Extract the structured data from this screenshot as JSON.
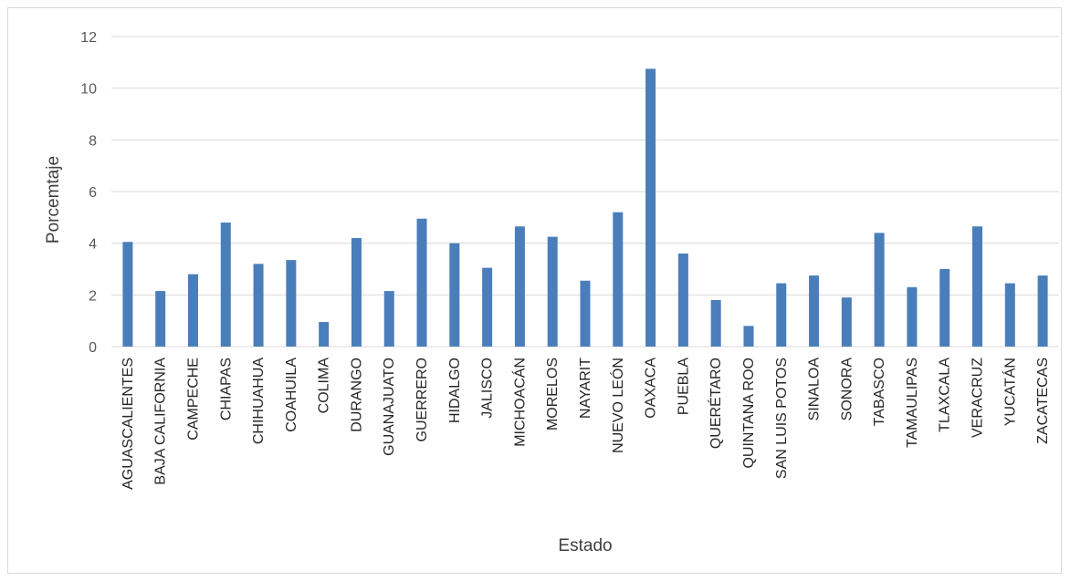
{
  "chart_data": {
    "type": "bar",
    "xlabel": "Estado",
    "ylabel": "Porcemtaje",
    "ylim": [
      0,
      12
    ],
    "yticks": [
      0,
      2,
      4,
      6,
      8,
      10,
      12
    ],
    "grid": true,
    "bar_color": "#4a7ebb",
    "categories": [
      "AGUASCALIENTES",
      "BAJA CALIFORNIA",
      "CAMPECHE",
      "CHIAPAS",
      "CHIHUAHUA",
      "COAHUILA",
      "COLIMA",
      "DURANGO",
      "GUANAJUATO",
      "GUERRERO",
      "HIDALGO",
      "JALISCO",
      "MICHOACÁN",
      "MORELOS",
      "NAYARIT",
      "NUEVO LEÓN",
      "OAXACA",
      "PUEBLA",
      "QUERÉTARO",
      "QUINTANA ROO",
      "SAN LUIS POTOS",
      "SINALOA",
      "SONORA",
      "TABASCO",
      "TAMAULIPAS",
      "TLAXCALA",
      "VERACRUZ",
      "YUCATÁN",
      "ZACATECAS"
    ],
    "values": [
      4.05,
      2.15,
      2.8,
      4.8,
      3.2,
      3.35,
      0.95,
      4.2,
      2.15,
      4.95,
      4.0,
      3.05,
      4.65,
      4.25,
      2.55,
      5.2,
      10.75,
      3.6,
      1.8,
      0.8,
      2.45,
      2.75,
      1.9,
      4.4,
      2.3,
      3.0,
      4.65,
      2.45,
      2.75
    ]
  }
}
